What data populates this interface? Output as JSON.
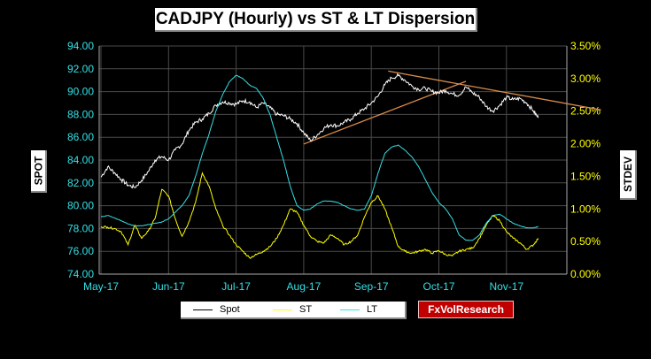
{
  "title": "CADJPY (Hourly) vs ST & LT Dispersion",
  "ylabel_left": "SPOT",
  "ylabel_right": "STDEV",
  "logo": "FxVolResearch",
  "colors": {
    "spot": "#ffffff",
    "st": "#ffff00",
    "lt": "#33e0e6",
    "trend": "#d98c4a",
    "axis_text": "#33e0e6",
    "right_axis_text": "#ffff00"
  },
  "chart_data": {
    "type": "line",
    "title": "CADJPY (Hourly) vs ST & LT Dispersion",
    "ylabel": "SPOT",
    "y2label": "STDEV",
    "ylim": [
      74,
      94
    ],
    "y2lim": [
      0,
      3.5
    ],
    "yticks": [
      "74.00",
      "76.00",
      "78.00",
      "80.00",
      "82.00",
      "84.00",
      "86.00",
      "88.00",
      "90.00",
      "92.00",
      "94.00"
    ],
    "y2ticks": [
      "0.00%",
      "0.50%",
      "1.00%",
      "1.50%",
      "2.00%",
      "2.50%",
      "3.00%",
      "3.50%"
    ],
    "x_range": [
      0,
      7.4
    ],
    "xticks": [
      {
        "label": "May-17",
        "x": 0
      },
      {
        "label": "Jun-17",
        "x": 1
      },
      {
        "label": "Jul-17",
        "x": 2
      },
      {
        "label": "Aug-17",
        "x": 3
      },
      {
        "label": "Sep-17",
        "x": 4
      },
      {
        "label": "Oct-17",
        "x": 5
      },
      {
        "label": "Nov-17",
        "x": 6
      }
    ],
    "legend": {
      "position": "bottom"
    },
    "series": [
      {
        "name": "Spot",
        "axis": "left",
        "points": [
          [
            0,
            82.5
          ],
          [
            0.1,
            83.4
          ],
          [
            0.2,
            82.9
          ],
          [
            0.3,
            82.3
          ],
          [
            0.4,
            81.8
          ],
          [
            0.5,
            81.6
          ],
          [
            0.6,
            82.2
          ],
          [
            0.7,
            83.0
          ],
          [
            0.8,
            84.0
          ],
          [
            0.9,
            84.3
          ],
          [
            1.0,
            84.0
          ],
          [
            1.1,
            84.9
          ],
          [
            1.2,
            85.4
          ],
          [
            1.3,
            86.6
          ],
          [
            1.4,
            87.3
          ],
          [
            1.5,
            87.6
          ],
          [
            1.6,
            88.1
          ],
          [
            1.7,
            88.8
          ],
          [
            1.8,
            89.1
          ],
          [
            1.9,
            89.0
          ],
          [
            2.0,
            88.9
          ],
          [
            2.1,
            89.2
          ],
          [
            2.2,
            89.1
          ],
          [
            2.3,
            88.6
          ],
          [
            2.4,
            89.0
          ],
          [
            2.5,
            88.6
          ],
          [
            2.6,
            88.0
          ],
          [
            2.7,
            87.9
          ],
          [
            2.8,
            87.6
          ],
          [
            2.9,
            87.2
          ],
          [
            3.0,
            86.4
          ],
          [
            3.1,
            85.7
          ],
          [
            3.2,
            86.2
          ],
          [
            3.3,
            86.8
          ],
          [
            3.4,
            87.1
          ],
          [
            3.5,
            87.0
          ],
          [
            3.6,
            87.3
          ],
          [
            3.7,
            87.6
          ],
          [
            3.8,
            88.1
          ],
          [
            3.9,
            88.5
          ],
          [
            4.0,
            89.0
          ],
          [
            4.1,
            89.6
          ],
          [
            4.2,
            90.6
          ],
          [
            4.3,
            91.2
          ],
          [
            4.4,
            91.4
          ],
          [
            4.5,
            91.0
          ],
          [
            4.6,
            90.5
          ],
          [
            4.7,
            90.2
          ],
          [
            4.8,
            90.3
          ],
          [
            4.9,
            90.0
          ],
          [
            5.0,
            89.9
          ],
          [
            5.1,
            90.1
          ],
          [
            5.2,
            89.8
          ],
          [
            5.3,
            89.7
          ],
          [
            5.4,
            90.4
          ],
          [
            5.5,
            89.9
          ],
          [
            5.6,
            89.5
          ],
          [
            5.7,
            88.7
          ],
          [
            5.8,
            88.3
          ],
          [
            5.9,
            88.8
          ],
          [
            6.0,
            89.5
          ],
          [
            6.1,
            89.3
          ],
          [
            6.2,
            89.4
          ],
          [
            6.3,
            89.0
          ],
          [
            6.4,
            88.3
          ],
          [
            6.47,
            87.7
          ]
        ]
      },
      {
        "name": "ST",
        "axis": "right",
        "points": [
          [
            0,
            0.73
          ],
          [
            0.1,
            0.72
          ],
          [
            0.2,
            0.7
          ],
          [
            0.3,
            0.65
          ],
          [
            0.4,
            0.45
          ],
          [
            0.5,
            0.75
          ],
          [
            0.6,
            0.55
          ],
          [
            0.7,
            0.66
          ],
          [
            0.8,
            0.85
          ],
          [
            0.9,
            1.3
          ],
          [
            1.0,
            1.2
          ],
          [
            1.1,
            0.85
          ],
          [
            1.2,
            0.58
          ],
          [
            1.3,
            0.8
          ],
          [
            1.4,
            1.1
          ],
          [
            1.5,
            1.55
          ],
          [
            1.6,
            1.35
          ],
          [
            1.7,
            1.0
          ],
          [
            1.8,
            0.75
          ],
          [
            1.9,
            0.6
          ],
          [
            2.0,
            0.45
          ],
          [
            2.1,
            0.35
          ],
          [
            2.2,
            0.25
          ],
          [
            2.3,
            0.3
          ],
          [
            2.4,
            0.35
          ],
          [
            2.5,
            0.42
          ],
          [
            2.6,
            0.55
          ],
          [
            2.7,
            0.75
          ],
          [
            2.8,
            1.0
          ],
          [
            2.9,
            0.95
          ],
          [
            3.0,
            0.75
          ],
          [
            3.1,
            0.58
          ],
          [
            3.2,
            0.5
          ],
          [
            3.3,
            0.48
          ],
          [
            3.4,
            0.6
          ],
          [
            3.5,
            0.55
          ],
          [
            3.6,
            0.45
          ],
          [
            3.7,
            0.5
          ],
          [
            3.8,
            0.6
          ],
          [
            3.9,
            0.88
          ],
          [
            4.0,
            1.1
          ],
          [
            4.1,
            1.2
          ],
          [
            4.2,
            1.0
          ],
          [
            4.3,
            0.72
          ],
          [
            4.4,
            0.42
          ],
          [
            4.5,
            0.35
          ],
          [
            4.6,
            0.32
          ],
          [
            4.7,
            0.35
          ],
          [
            4.8,
            0.38
          ],
          [
            4.9,
            0.32
          ],
          [
            5.0,
            0.36
          ],
          [
            5.1,
            0.3
          ],
          [
            5.2,
            0.28
          ],
          [
            5.3,
            0.35
          ],
          [
            5.4,
            0.38
          ],
          [
            5.5,
            0.4
          ],
          [
            5.6,
            0.55
          ],
          [
            5.7,
            0.75
          ],
          [
            5.8,
            0.9
          ],
          [
            5.9,
            0.82
          ],
          [
            6.0,
            0.65
          ],
          [
            6.1,
            0.55
          ],
          [
            6.2,
            0.48
          ],
          [
            6.3,
            0.38
          ],
          [
            6.4,
            0.45
          ],
          [
            6.47,
            0.55
          ]
        ]
      },
      {
        "name": "LT",
        "axis": "right",
        "points": [
          [
            0,
            0.88
          ],
          [
            0.1,
            0.9
          ],
          [
            0.2,
            0.86
          ],
          [
            0.3,
            0.82
          ],
          [
            0.4,
            0.77
          ],
          [
            0.5,
            0.74
          ],
          [
            0.6,
            0.74
          ],
          [
            0.7,
            0.76
          ],
          [
            0.8,
            0.78
          ],
          [
            0.9,
            0.8
          ],
          [
            1.0,
            0.85
          ],
          [
            1.1,
            0.95
          ],
          [
            1.2,
            1.05
          ],
          [
            1.3,
            1.2
          ],
          [
            1.4,
            1.5
          ],
          [
            1.5,
            1.85
          ],
          [
            1.6,
            2.15
          ],
          [
            1.7,
            2.5
          ],
          [
            1.8,
            2.75
          ],
          [
            1.9,
            2.95
          ],
          [
            2.0,
            3.05
          ],
          [
            2.1,
            3.0
          ],
          [
            2.2,
            2.9
          ],
          [
            2.3,
            2.85
          ],
          [
            2.4,
            2.7
          ],
          [
            2.5,
            2.45
          ],
          [
            2.6,
            2.1
          ],
          [
            2.7,
            1.75
          ],
          [
            2.8,
            1.35
          ],
          [
            2.9,
            1.05
          ],
          [
            3.0,
            0.98
          ],
          [
            3.1,
            1.0
          ],
          [
            3.2,
            1.08
          ],
          [
            3.3,
            1.12
          ],
          [
            3.4,
            1.12
          ],
          [
            3.5,
            1.1
          ],
          [
            3.6,
            1.05
          ],
          [
            3.7,
            1.0
          ],
          [
            3.8,
            0.98
          ],
          [
            3.9,
            1.0
          ],
          [
            4.0,
            1.2
          ],
          [
            4.1,
            1.55
          ],
          [
            4.2,
            1.85
          ],
          [
            4.3,
            1.95
          ],
          [
            4.4,
            1.98
          ],
          [
            4.5,
            1.9
          ],
          [
            4.6,
            1.8
          ],
          [
            4.7,
            1.65
          ],
          [
            4.8,
            1.45
          ],
          [
            4.9,
            1.25
          ],
          [
            5.0,
            1.1
          ],
          [
            5.1,
            1.0
          ],
          [
            5.2,
            0.85
          ],
          [
            5.3,
            0.6
          ],
          [
            5.4,
            0.52
          ],
          [
            5.5,
            0.52
          ],
          [
            5.6,
            0.6
          ],
          [
            5.7,
            0.78
          ],
          [
            5.8,
            0.9
          ],
          [
            5.9,
            0.92
          ],
          [
            6.0,
            0.85
          ],
          [
            6.1,
            0.78
          ],
          [
            6.2,
            0.74
          ],
          [
            6.3,
            0.71
          ],
          [
            6.4,
            0.71
          ],
          [
            6.47,
            0.73
          ]
        ]
      }
    ],
    "trendlines": [
      {
        "axis": "left",
        "points": [
          [
            3.0,
            85.4
          ],
          [
            5.4,
            90.9
          ]
        ]
      },
      {
        "axis": "left",
        "points": [
          [
            4.25,
            91.8
          ],
          [
            7.4,
            88.4
          ]
        ]
      }
    ]
  }
}
